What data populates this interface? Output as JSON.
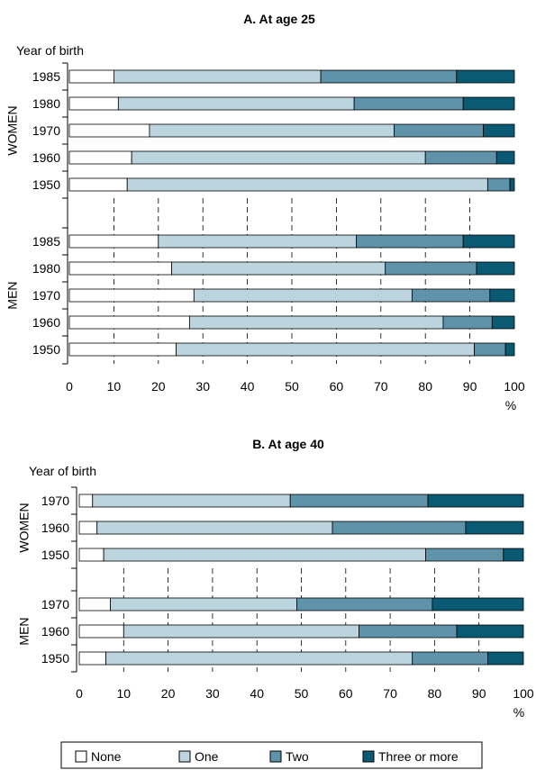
{
  "colors": {
    "None": "#ffffff",
    "One": "#bcd4de",
    "Two": "#5f93aa",
    "Three or more": "#0b5a73"
  },
  "legend": [
    "None",
    "One",
    "Two",
    "Three or more"
  ],
  "chart_data": [
    {
      "type": "bar",
      "orientation": "horizontal",
      "stacked": true,
      "title": "A. At age 25",
      "ylabel": "Year of birth",
      "xlabel": "%",
      "xlim": [
        0,
        100
      ],
      "xticks": [
        0,
        10,
        20,
        30,
        40,
        50,
        60,
        70,
        80,
        90,
        100
      ],
      "grid": "vertical dashed",
      "groups": [
        {
          "name": "WOMEN",
          "categories": [
            "1985",
            "1980",
            "1970",
            "1960",
            "1950"
          ],
          "series": [
            {
              "name": "None",
              "values": [
                10,
                11,
                18,
                14,
                13
              ]
            },
            {
              "name": "One",
              "values": [
                46.5,
                53,
                55,
                66,
                81
              ]
            },
            {
              "name": "Two",
              "values": [
                30.5,
                24.5,
                20,
                16,
                5
              ]
            },
            {
              "name": "Three or more",
              "values": [
                13,
                11.5,
                7,
                4,
                1
              ]
            }
          ]
        },
        {
          "name": "MEN",
          "categories": [
            "1985",
            "1980",
            "1970",
            "1960",
            "1950"
          ],
          "series": [
            {
              "name": "None",
              "values": [
                20,
                23,
                28,
                27,
                24
              ]
            },
            {
              "name": "One",
              "values": [
                44.5,
                48,
                49,
                57,
                67
              ]
            },
            {
              "name": "Two",
              "values": [
                24,
                20.5,
                17.5,
                11,
                7
              ]
            },
            {
              "name": "Three or more",
              "values": [
                11.5,
                8.5,
                5.5,
                5,
                2
              ]
            }
          ]
        }
      ]
    },
    {
      "type": "bar",
      "orientation": "horizontal",
      "stacked": true,
      "title": "B. At age 40",
      "ylabel": "Year of birth",
      "xlabel": "%",
      "xlim": [
        0,
        100
      ],
      "xticks": [
        0,
        10,
        20,
        30,
        40,
        50,
        60,
        70,
        80,
        90,
        100
      ],
      "grid": "vertical dashed",
      "groups": [
        {
          "name": "WOMEN",
          "categories": [
            "1970",
            "1960",
            "1950"
          ],
          "series": [
            {
              "name": "None",
              "values": [
                3,
                4,
                5.5
              ]
            },
            {
              "name": "One",
              "values": [
                44.5,
                53,
                72.5
              ]
            },
            {
              "name": "Two",
              "values": [
                31,
                30,
                17.5
              ]
            },
            {
              "name": "Three or more",
              "values": [
                21.5,
                13,
                4.5
              ]
            }
          ]
        },
        {
          "name": "MEN",
          "categories": [
            "1970",
            "1960",
            "1950"
          ],
          "series": [
            {
              "name": "None",
              "values": [
                7,
                10,
                6
              ]
            },
            {
              "name": "One",
              "values": [
                42,
                53,
                69
              ]
            },
            {
              "name": "Two",
              "values": [
                30.5,
                22,
                17
              ]
            },
            {
              "name": "Three or more",
              "values": [
                20.5,
                15,
                8
              ]
            }
          ]
        }
      ]
    }
  ]
}
